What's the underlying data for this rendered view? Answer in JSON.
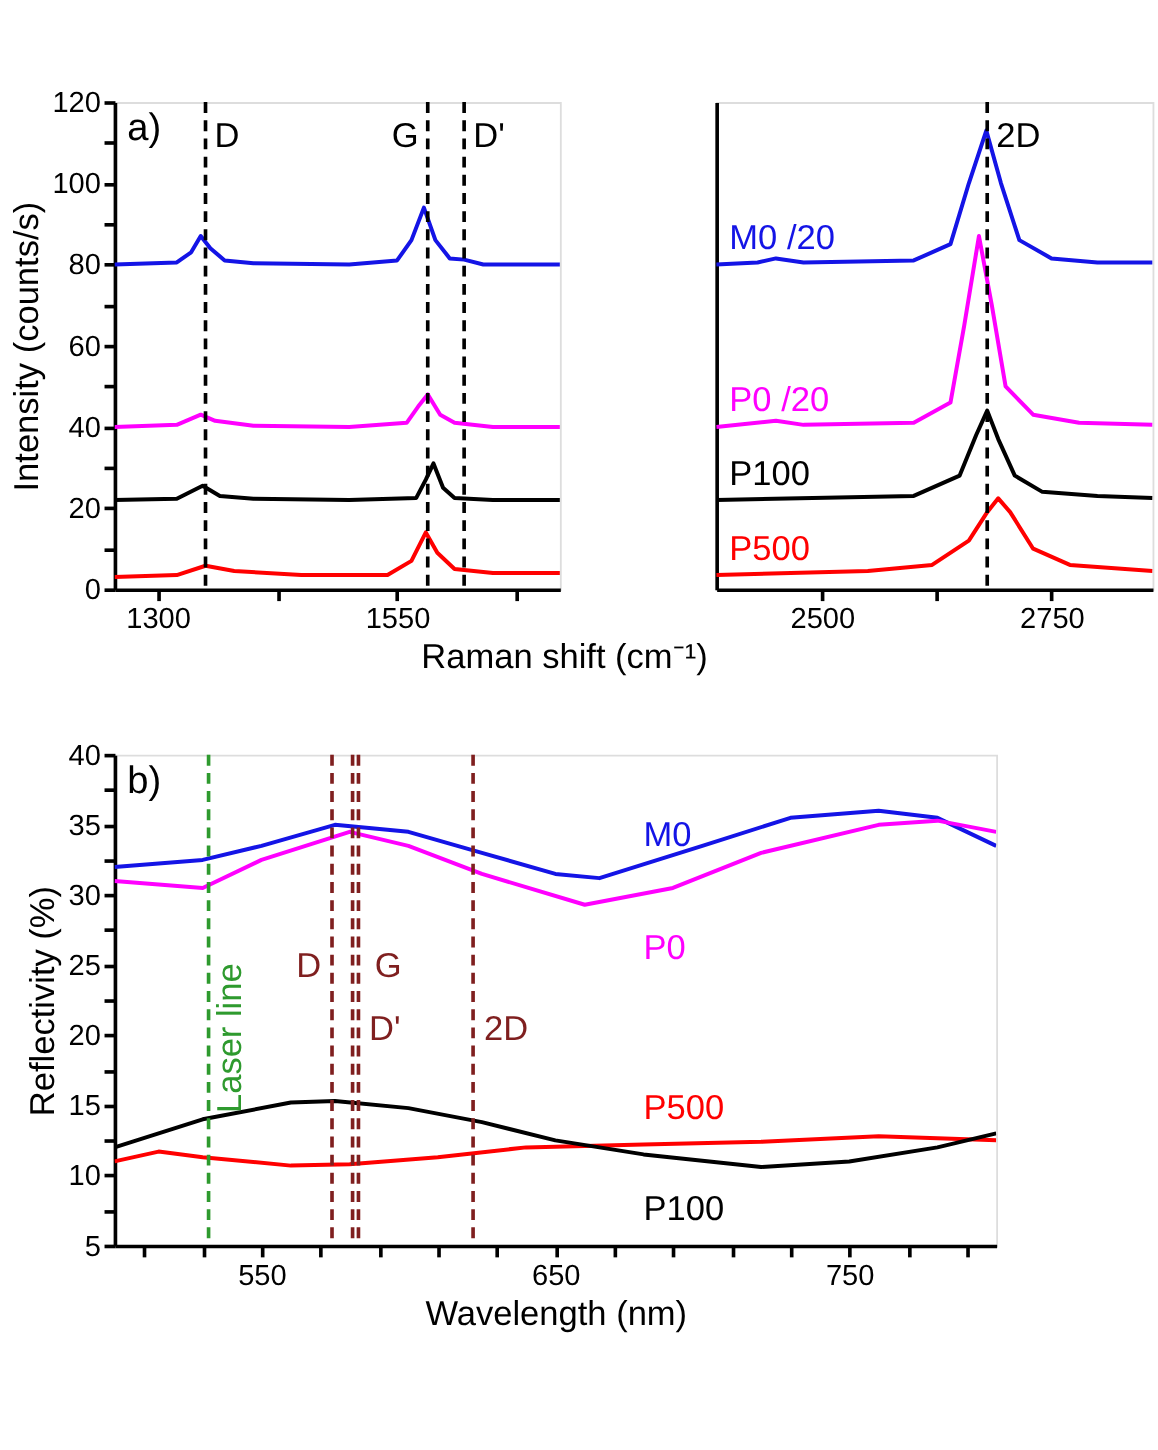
{
  "chart_data": [
    {
      "type": "line",
      "ylabel": "Intensity (counts/s)",
      "xlabel": "Raman shift (cm⁻¹)",
      "annotations": [
        "a)"
      ],
      "xlim": [
        1255,
        1720
      ],
      "ylim": [
        0,
        120
      ],
      "xticks": [
        1300,
        {
          "value": 1425,
          "label": null
        },
        1550,
        {
          "value": 1675,
          "label": null
        }
      ],
      "yticks": [
        0,
        {
          "value": 10,
          "label": null
        },
        20,
        {
          "value": 30,
          "label": null
        },
        40,
        {
          "value": 50,
          "label": null
        },
        60,
        {
          "value": 70,
          "label": null
        },
        80,
        {
          "value": 90,
          "label": null
        },
        100,
        {
          "value": 110,
          "label": null
        },
        120
      ],
      "ref_lines": [
        {
          "axis": "x",
          "value": 1350,
          "label": "D",
          "color": "#000000",
          "line_style": "dashed"
        },
        {
          "axis": "x",
          "value": 1582,
          "label": "G",
          "color": "#000000",
          "line_style": "dashed"
        },
        {
          "axis": "x",
          "value": 1620,
          "label": "D'",
          "color": "#000000",
          "line_style": "dashed"
        }
      ],
      "series": [
        {
          "color": "#1414e6",
          "x": [
            1255,
            1320,
            1335,
            1345,
            1355,
            1370,
            1400,
            1500,
            1550,
            1565,
            1578,
            1590,
            1605,
            1620,
            1640,
            1720
          ],
          "values": [
            80,
            80.5,
            83,
            87,
            84,
            81,
            80.3,
            80,
            81,
            86,
            94,
            86,
            81.5,
            81.2,
            80,
            80
          ]
        },
        {
          "color": "#ff00ff",
          "x": [
            1255,
            1320,
            1345,
            1360,
            1400,
            1500,
            1560,
            1572,
            1582,
            1595,
            1610,
            1650,
            1720
          ],
          "values": [
            40,
            40.5,
            43,
            41.5,
            40.3,
            40,
            41,
            45,
            48,
            43,
            41,
            40,
            40
          ]
        },
        {
          "color": "#000000",
          "x": [
            1255,
            1320,
            1347,
            1365,
            1400,
            1500,
            1570,
            1580,
            1588,
            1598,
            1610,
            1650,
            1720
          ],
          "values": [
            22,
            22.3,
            25.5,
            23,
            22.3,
            22,
            22.5,
            27,
            31,
            25,
            22.5,
            22,
            22
          ]
        },
        {
          "color": "#ff0000",
          "x": [
            1255,
            1320,
            1350,
            1380,
            1450,
            1540,
            1565,
            1580,
            1592,
            1610,
            1650,
            1720
          ],
          "values": [
            3,
            3.5,
            5.8,
            4.5,
            3.5,
            3.5,
            7,
            14,
            9,
            5,
            4,
            4
          ]
        }
      ]
    },
    {
      "type": "line",
      "tick_labels": "x",
      "xlim": [
        2385,
        2860
      ],
      "ylim": [
        0,
        120
      ],
      "xticks": [
        2500,
        {
          "value": 2625,
          "label": null
        },
        2750
      ],
      "ref_lines": [
        {
          "axis": "x",
          "value": 2680,
          "label": "2D",
          "color": "#000000",
          "line_style": "dashed"
        }
      ],
      "series": [
        {
          "name": "M0 /20",
          "color": "#1414e6",
          "x": [
            2385,
            2430,
            2450,
            2480,
            2600,
            2640,
            2660,
            2679,
            2695,
            2715,
            2750,
            2800,
            2860
          ],
          "values": [
            80,
            80.5,
            81.5,
            80.5,
            81,
            85,
            100,
            113,
            100,
            86,
            81.5,
            80.5,
            80.5
          ]
        },
        {
          "name": "P0 /20",
          "color": "#ff00ff",
          "x": [
            2385,
            2450,
            2480,
            2600,
            2640,
            2655,
            2671,
            2685,
            2700,
            2730,
            2780,
            2860
          ],
          "values": [
            40,
            41.5,
            40.5,
            41,
            46,
            65,
            87,
            70,
            50,
            43,
            41,
            40.5
          ]
        },
        {
          "name": "P100",
          "color": "#000000",
          "x": [
            2385,
            2600,
            2650,
            2668,
            2680,
            2692,
            2710,
            2740,
            2800,
            2860
          ],
          "values": [
            22,
            23,
            28,
            38,
            44,
            37,
            28,
            24,
            23,
            22.5
          ]
        },
        {
          "name": "P500",
          "color": "#ff0000",
          "x": [
            2385,
            2550,
            2620,
            2660,
            2680,
            2692,
            2705,
            2730,
            2770,
            2860
          ],
          "values": [
            3.5,
            4.5,
            6,
            12,
            19,
            22.4,
            19,
            10,
            6,
            4.5
          ]
        }
      ]
    },
    {
      "type": "line",
      "ylabel": "Reflectivity (%)",
      "xlabel": "Wavelength (nm)",
      "annotations": [
        "b)"
      ],
      "xlim": [
        500,
        800
      ],
      "ylim": [
        5,
        40
      ],
      "xticks": [
        {
          "value": 510,
          "label": null
        },
        {
          "value": 530,
          "label": null
        },
        550,
        {
          "value": 570,
          "label": null
        },
        {
          "value": 590,
          "label": null
        },
        {
          "value": 610,
          "label": null
        },
        {
          "value": 630,
          "label": null
        },
        650,
        {
          "value": 670,
          "label": null
        },
        {
          "value": 690,
          "label": null
        },
        {
          "value": 710,
          "label": null
        },
        {
          "value": 730,
          "label": null
        },
        750,
        {
          "value": 770,
          "label": null
        },
        {
          "value": 790,
          "label": null
        }
      ],
      "yticks": [
        5,
        {
          "value": 7.5,
          "label": null
        },
        10,
        {
          "value": 12.5,
          "label": null
        },
        15,
        {
          "value": 17.5,
          "label": null
        },
        20,
        {
          "value": 22.5,
          "label": null
        },
        25,
        {
          "value": 27.5,
          "label": null
        },
        30,
        {
          "value": 32.5,
          "label": null
        },
        35,
        {
          "value": 37.5,
          "label": null
        },
        40
      ],
      "ref_lines": [
        {
          "axis": "x",
          "value": 532,
          "label": "Laser line",
          "color": "#2e9a2e",
          "line_style": "dashed"
        },
        {
          "axis": "x",
          "value": 574,
          "label": "D",
          "color": "#7f1f1f",
          "line_style": "dashed"
        },
        {
          "axis": "x",
          "value": 583,
          "label": "G",
          "color": "#7f1f1f",
          "line_style": "dashed"
        },
        {
          "axis": "x",
          "value": 581,
          "label": "D'",
          "color": "#7f1f1f",
          "line_style": "dashed"
        },
        {
          "axis": "x",
          "value": 622,
          "label": "2D",
          "color": "#7f1f1f",
          "line_style": "dashed"
        }
      ],
      "series": [
        {
          "name": "M0",
          "color": "#1414e6",
          "x": [
            500,
            530,
            550,
            575,
            600,
            625,
            650,
            665,
            700,
            730,
            760,
            780,
            800
          ],
          "values": [
            32,
            32.5,
            33.5,
            35,
            34.5,
            33,
            31.5,
            31.2,
            33.5,
            35.5,
            36,
            35.5,
            33.5
          ]
        },
        {
          "name": "P0",
          "color": "#ff00ff",
          "x": [
            500,
            530,
            550,
            580,
            600,
            625,
            660,
            690,
            720,
            760,
            780,
            800
          ],
          "values": [
            31,
            30.5,
            32.5,
            34.5,
            33.5,
            31.5,
            29.3,
            30.5,
            33,
            35,
            35.3,
            34.5
          ]
        },
        {
          "name": "P500",
          "color": "#ff0000",
          "x": [
            500,
            515,
            530,
            560,
            580,
            610,
            640,
            680,
            720,
            760,
            800
          ],
          "values": [
            11,
            11.7,
            11.3,
            10.7,
            10.8,
            11.3,
            12,
            12.2,
            12.4,
            12.8,
            12.5
          ]
        },
        {
          "name": "P100",
          "color": "#000000",
          "x": [
            500,
            530,
            560,
            575,
            600,
            625,
            650,
            680,
            720,
            750,
            780,
            800
          ],
          "values": [
            12,
            14,
            15.2,
            15.3,
            14.8,
            13.8,
            12.5,
            11.5,
            10.6,
            11,
            12,
            13
          ]
        }
      ]
    }
  ]
}
